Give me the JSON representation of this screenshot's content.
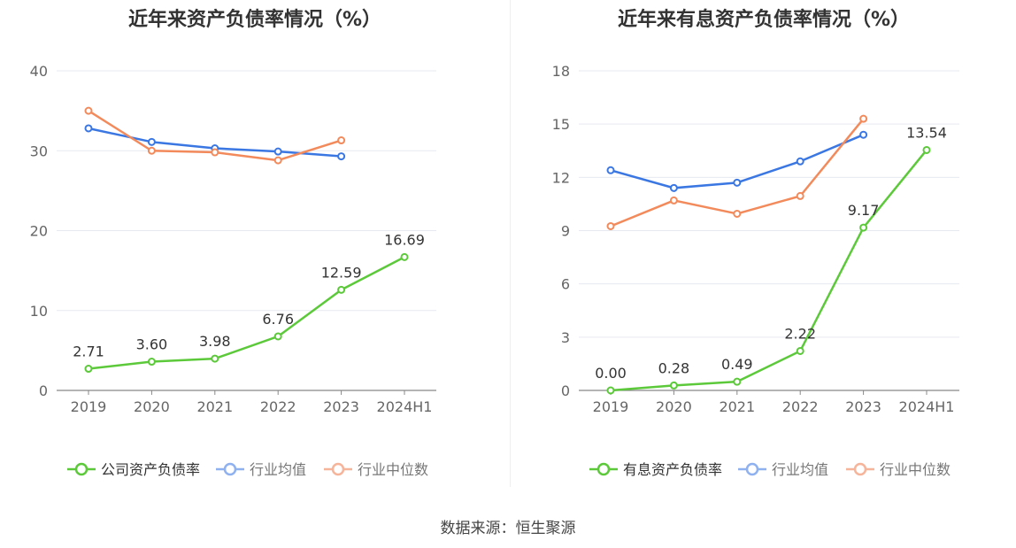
{
  "source_label": "数据来源：恒生聚源",
  "chart_data": [
    {
      "type": "line",
      "title": "近年来资产负债率情况（%）",
      "categories": [
        "2019",
        "2020",
        "2021",
        "2022",
        "2023",
        "2024H1"
      ],
      "ylim": [
        0,
        40
      ],
      "yticks": [
        0,
        10,
        20,
        30,
        40
      ],
      "grid": true,
      "legend_position": "bottom",
      "series": [
        {
          "name": "公司资产负债率",
          "color": "#5cc93a",
          "values": [
            2.71,
            3.6,
            3.98,
            6.76,
            12.59,
            16.69
          ],
          "labels": [
            "2.71",
            "3.60",
            "3.98",
            "6.76",
            "12.59",
            "16.69"
          ]
        },
        {
          "name": "行业均值",
          "color": "#3b77e3",
          "values": [
            32.8,
            31.1,
            30.3,
            29.9,
            29.3,
            null
          ],
          "labels": []
        },
        {
          "name": "行业中位数",
          "color": "#f28a5b",
          "values": [
            35.0,
            30.0,
            29.8,
            28.8,
            31.3,
            null
          ],
          "labels": []
        }
      ]
    },
    {
      "type": "line",
      "title": "近年来有息资产负债率情况（%）",
      "categories": [
        "2019",
        "2020",
        "2021",
        "2022",
        "2023",
        "2024H1"
      ],
      "ylim": [
        0,
        18
      ],
      "yticks": [
        0,
        3,
        6,
        9,
        12,
        15,
        18
      ],
      "grid": true,
      "legend_position": "bottom",
      "series": [
        {
          "name": "有息资产负债率",
          "color": "#5cc93a",
          "values": [
            0.0,
            0.28,
            0.49,
            2.22,
            9.17,
            13.54
          ],
          "labels": [
            "0.00",
            "0.28",
            "0.49",
            "2.22",
            "9.17",
            "13.54"
          ]
        },
        {
          "name": "行业均值",
          "color": "#3b77e3",
          "values": [
            12.4,
            11.4,
            11.7,
            12.9,
            14.4,
            null
          ],
          "labels": []
        },
        {
          "name": "行业中位数",
          "color": "#f28a5b",
          "values": [
            9.25,
            10.7,
            9.95,
            10.95,
            15.3,
            null
          ],
          "labels": []
        }
      ]
    }
  ]
}
